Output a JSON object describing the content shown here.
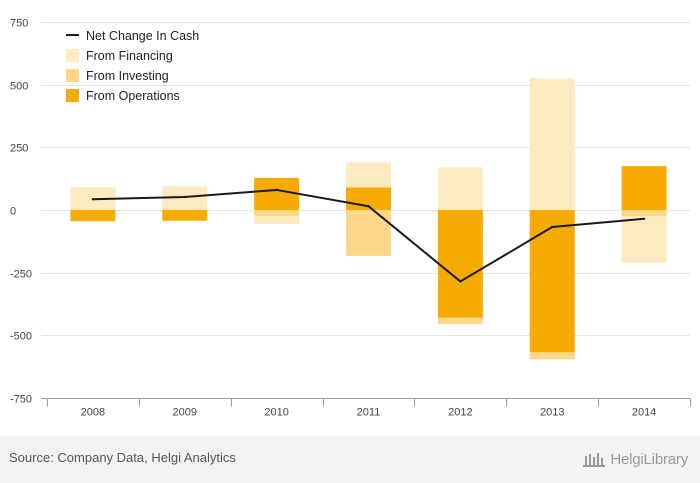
{
  "chart_data": {
    "type": "bar",
    "stacked": true,
    "categories": [
      "2008",
      "2009",
      "2010",
      "2011",
      "2012",
      "2013",
      "2014"
    ],
    "series": [
      {
        "name": "From Operations",
        "kind": "bar",
        "color": "#f5ab00",
        "values": [
          -45,
          -43,
          128,
          90,
          -430,
          -568,
          175
        ]
      },
      {
        "name": "From Investing",
        "kind": "bar",
        "color": "#fdd88a",
        "values": [
          0,
          0,
          -25,
          -183,
          -25,
          -28,
          -25
        ]
      },
      {
        "name": "From Financing",
        "kind": "bar",
        "color": "#feeac0",
        "values": [
          90,
          95,
          -30,
          100,
          170,
          525,
          -185
        ]
      },
      {
        "name": "Net Change In Cash",
        "kind": "line",
        "color": "#1a1a1a",
        "values": [
          43,
          52,
          80,
          15,
          -285,
          -68,
          -35
        ]
      }
    ],
    "yticks": [
      "750",
      "500",
      "250",
      "0",
      "-250",
      "-500",
      "-750"
    ],
    "ylim": [
      -750,
      750
    ],
    "legend": [
      "Net Change In Cash",
      "From Financing",
      "From Investing",
      "From Operations"
    ],
    "legend_position": "top-left",
    "grid": true,
    "title": "",
    "xlabel": "",
    "ylabel": ""
  },
  "footer": {
    "source": "Source: Company Data, Helgi Analytics",
    "logo_text": "HelgiLibrary"
  }
}
